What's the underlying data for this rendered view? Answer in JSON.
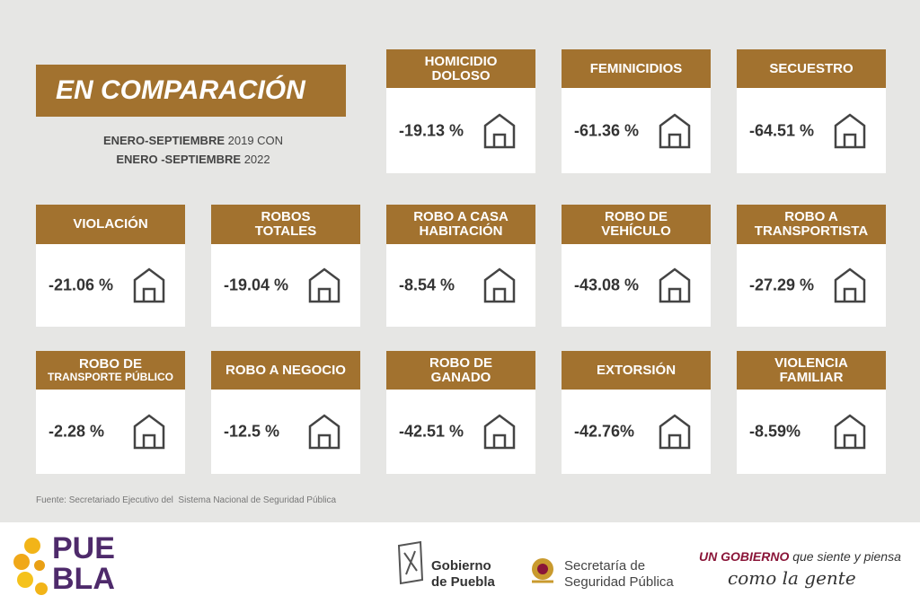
{
  "header": {
    "title": "EN COMPARACIÓN",
    "period": [
      [
        "ENERO-SEPTIEMBRE",
        "2019 CON"
      ],
      [
        "ENERO -SEPTIEMBRE",
        "2022"
      ]
    ]
  },
  "cards": [
    {
      "title": [
        "HOMICIDIO",
        "DOLOSO"
      ],
      "value": "-19.13 %"
    },
    {
      "title": [
        "FEMINICIDIOS"
      ],
      "value": "-61.36 %"
    },
    {
      "title": [
        "SECUESTRO"
      ],
      "value": "-64.51 %"
    },
    {
      "title": [
        "VIOLACIÓN"
      ],
      "value": "-21.06 %"
    },
    {
      "title": [
        "ROBOS",
        "TOTALES"
      ],
      "value": "-19.04 %"
    },
    {
      "title": [
        "ROBO A CASA",
        "HABITACIÓN"
      ],
      "value": "-8.54 %"
    },
    {
      "title": [
        "ROBO DE",
        "VEHÍCULO"
      ],
      "value": "-43.08 %"
    },
    {
      "title": [
        "ROBO A",
        "TRANSPORTISTA"
      ],
      "value": "-27.29 %"
    },
    {
      "title": [
        "ROBO DE",
        "TRANSPORTE PÚBLICO"
      ],
      "value": "-2.28 %"
    },
    {
      "title": [
        "ROBO A NEGOCIO"
      ],
      "value": "-12.5 %"
    },
    {
      "title": [
        "ROBO DE",
        "GANADO"
      ],
      "value": "-42.51 %"
    },
    {
      "title": [
        "EXTORSIÓN"
      ],
      "value": "-42.76%"
    },
    {
      "title": [
        "VIOLENCIA",
        "FAMILIAR"
      ],
      "value": "-8.59%"
    }
  ],
  "source": "Fuente: Secretariado Ejecutivo del  Sistema Nacional de Seguridad Pública",
  "footer": {
    "logo": [
      "PUE",
      "BLA"
    ],
    "government": [
      "Gobierno",
      "de Puebla"
    ],
    "secretariat": [
      "Secretaría de",
      "Seguridad Pública"
    ],
    "slogan": [
      "UN GOBIERNO",
      "que siente y piensa",
      "como la gente"
    ]
  }
}
